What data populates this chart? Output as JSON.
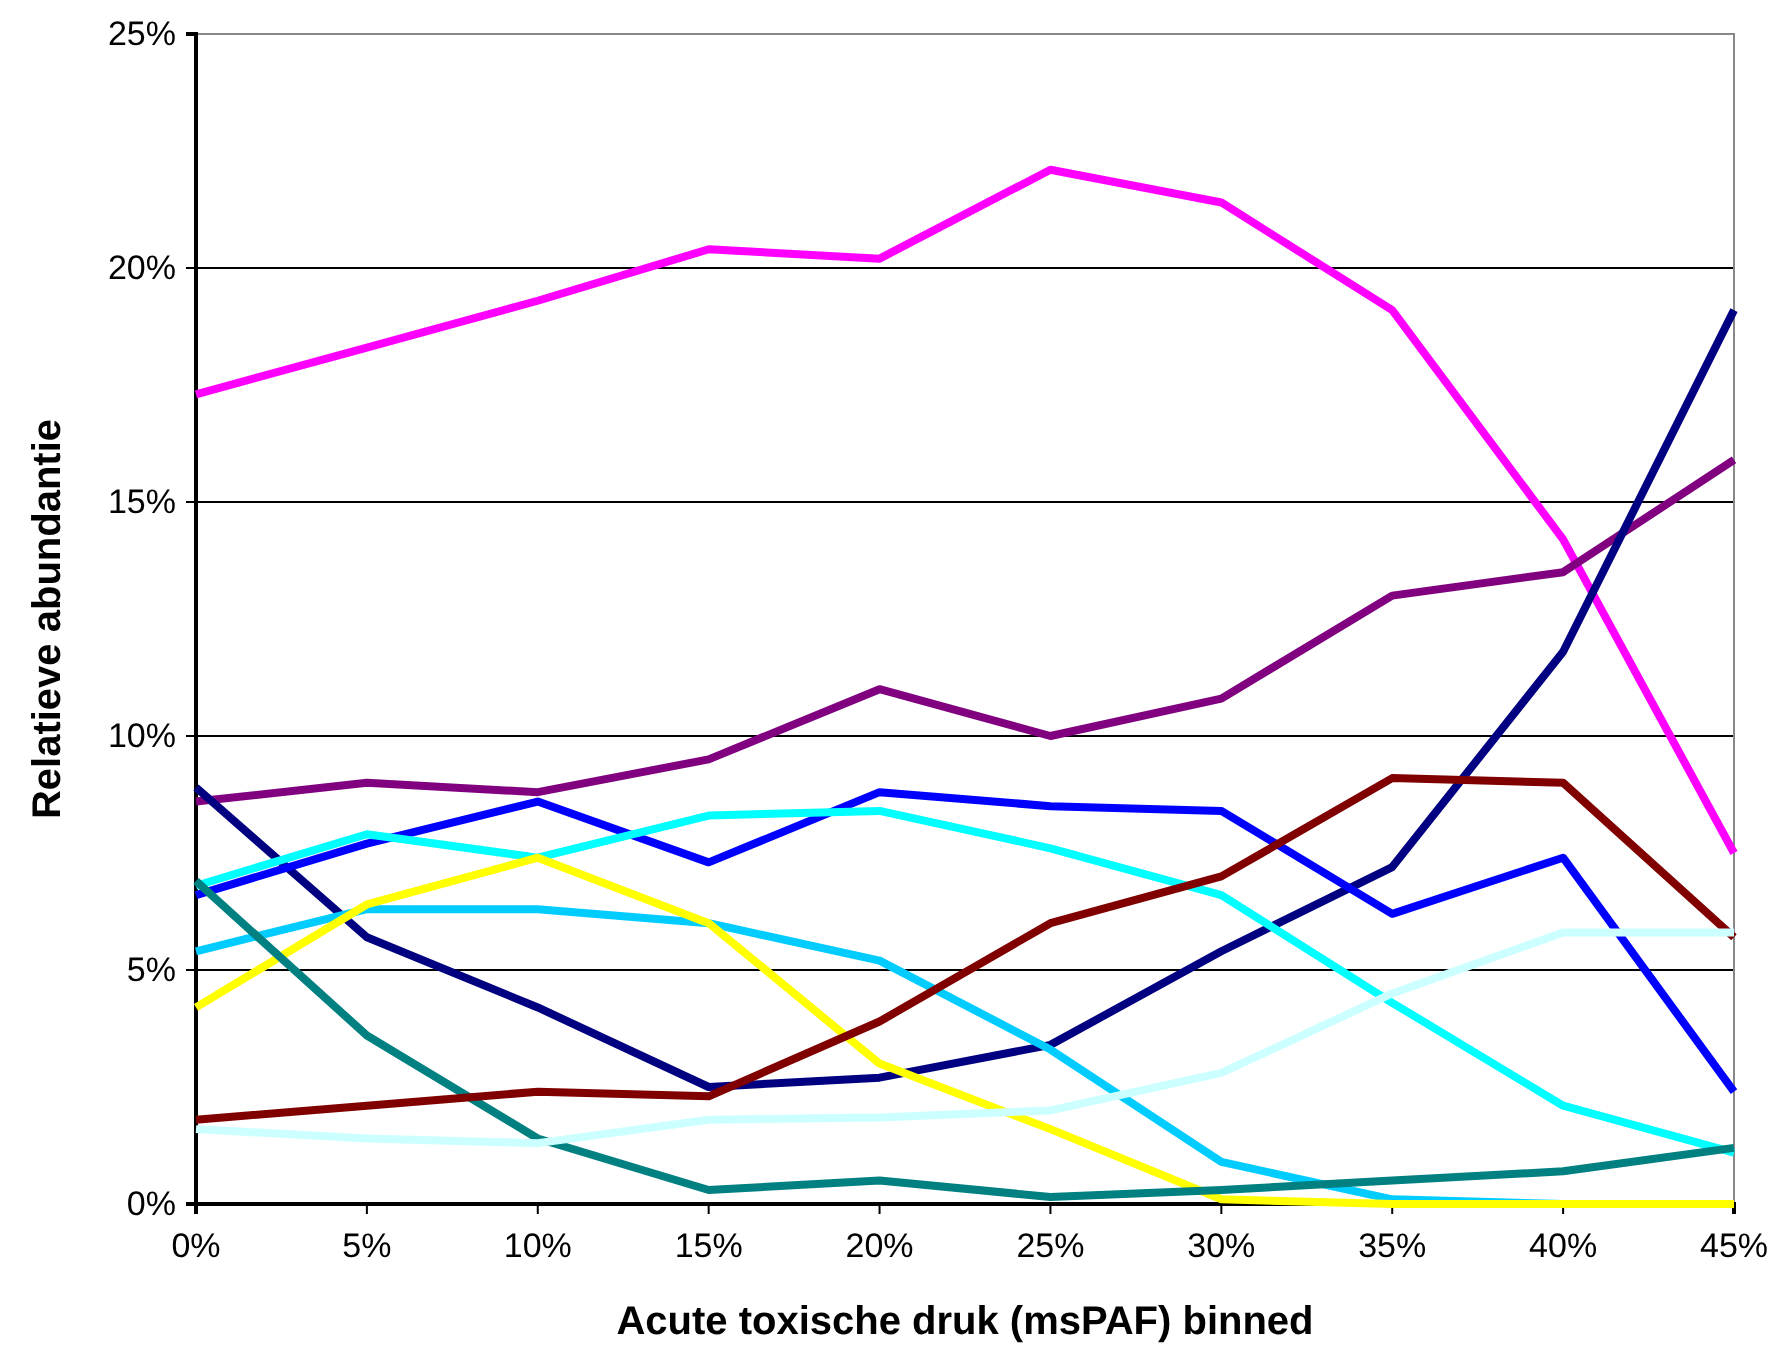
{
  "chart_data": {
    "type": "line",
    "xlabel": "Acute toxische druk (msPAF) binned",
    "ylabel": "Relatieve abundantie",
    "x": [
      0,
      5,
      10,
      15,
      20,
      25,
      30,
      35,
      40,
      45
    ],
    "xlim": [
      0,
      45
    ],
    "xticks": [
      {
        "value": 0,
        "label": "0%"
      },
      {
        "value": 5,
        "label": "5%"
      },
      {
        "value": 10,
        "label": "10%"
      },
      {
        "value": 15,
        "label": "15%"
      },
      {
        "value": 20,
        "label": "20%"
      },
      {
        "value": 25,
        "label": "25%"
      },
      {
        "value": 30,
        "label": "30%"
      },
      {
        "value": 35,
        "label": "35%"
      },
      {
        "value": 40,
        "label": "40%"
      },
      {
        "value": 45,
        "label": "45%"
      }
    ],
    "ylim": [
      0,
      25
    ],
    "yticks": [
      {
        "value": 0,
        "label": "0%"
      },
      {
        "value": 5,
        "label": "5%"
      },
      {
        "value": 10,
        "label": "10%"
      },
      {
        "value": 15,
        "label": "15%"
      },
      {
        "value": 20,
        "label": "20%"
      },
      {
        "value": 25,
        "label": "25%"
      }
    ],
    "grid": "y",
    "marker": "none",
    "line_style": "solid",
    "series": [
      {
        "color": "#ff00ff",
        "values": [
          17.3,
          18.3,
          19.3,
          20.4,
          20.2,
          22.1,
          21.4,
          19.1,
          14.2,
          7.5
        ]
      },
      {
        "color": "#800080",
        "values": [
          8.6,
          9.0,
          8.8,
          9.5,
          11.0,
          10.0,
          10.8,
          13.0,
          13.5,
          15.9
        ]
      },
      {
        "color": "#000080",
        "values": [
          8.9,
          5.7,
          4.2,
          2.5,
          2.7,
          3.4,
          5.4,
          7.2,
          11.8,
          19.1
        ]
      },
      {
        "color": "#0000ff",
        "values": [
          6.6,
          7.7,
          8.6,
          7.3,
          8.8,
          8.5,
          8.4,
          6.2,
          7.4,
          2.4
        ]
      },
      {
        "color": "#00ffff",
        "values": [
          6.8,
          7.9,
          7.4,
          8.3,
          8.4,
          7.6,
          6.6,
          4.3,
          2.1,
          1.1
        ]
      },
      {
        "color": "#00ccff",
        "values": [
          5.4,
          6.3,
          6.3,
          6.0,
          5.2,
          3.3,
          0.9,
          0.1,
          0.0,
          0.0
        ]
      },
      {
        "color": "#ffff00",
        "values": [
          4.2,
          6.4,
          7.4,
          6.0,
          3.0,
          1.6,
          0.1,
          0.0,
          0.0,
          0.0
        ]
      },
      {
        "color": "#008080",
        "values": [
          6.9,
          3.6,
          1.4,
          0.3,
          0.5,
          0.15,
          0.3,
          0.5,
          0.7,
          1.2
        ]
      },
      {
        "color": "#800000",
        "values": [
          1.8,
          2.1,
          2.4,
          2.3,
          3.9,
          6.0,
          7.0,
          9.1,
          9.0,
          5.7
        ]
      },
      {
        "color": "#ccffff",
        "values": [
          1.6,
          1.4,
          1.3,
          1.8,
          1.85,
          2.0,
          2.8,
          4.5,
          5.8,
          5.8
        ]
      }
    ]
  }
}
